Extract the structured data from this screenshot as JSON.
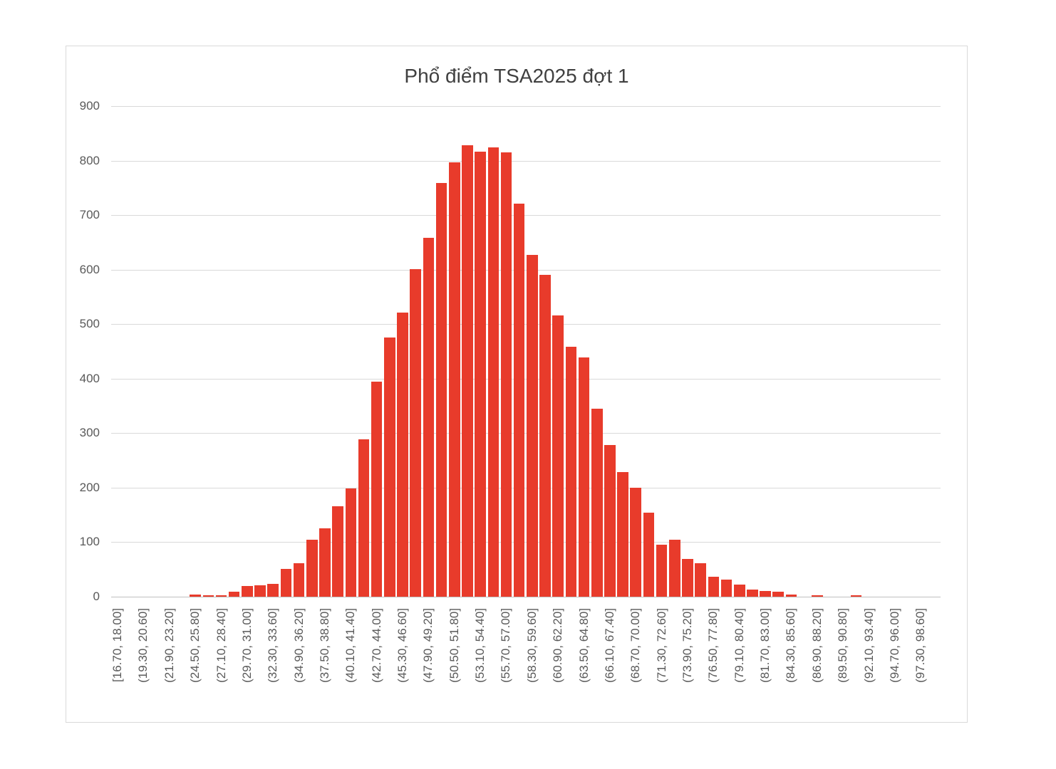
{
  "chart_data": {
    "type": "bar",
    "subtype": "histogram",
    "title": "Phổ điểm TSA2025 đợt 1",
    "xlabel": "",
    "ylabel": "",
    "ylim": [
      0,
      900
    ],
    "yticks": [
      0,
      100,
      200,
      300,
      400,
      500,
      600,
      700,
      800,
      900
    ],
    "grid": true,
    "legend": false,
    "bin_width": 1.3,
    "x_label_every": 2,
    "colors": {
      "bar": "#E83B2B",
      "gridline": "#D9D9D9",
      "axis_line": "#BFBFBF",
      "tick_label": "#595959",
      "title": "#404040",
      "background": "#FFFFFF",
      "chart_border": "#D9D9D9"
    },
    "bins": [
      {
        "label": "[16.70, 18.00]",
        "value": 0
      },
      {
        "label": null,
        "value": 0
      },
      {
        "label": "(19.30, 20.60]",
        "value": 0
      },
      {
        "label": null,
        "value": 0
      },
      {
        "label": "(21.90, 23.20]",
        "value": 0
      },
      {
        "label": null,
        "value": 0
      },
      {
        "label": "(24.50, 25.80]",
        "value": 4
      },
      {
        "label": null,
        "value": 3
      },
      {
        "label": "(27.10, 28.40]",
        "value": 3
      },
      {
        "label": null,
        "value": 9
      },
      {
        "label": "(29.70, 31.00]",
        "value": 19
      },
      {
        "label": null,
        "value": 21
      },
      {
        "label": "(32.30, 33.60]",
        "value": 23
      },
      {
        "label": null,
        "value": 51
      },
      {
        "label": "(34.90, 36.20]",
        "value": 62
      },
      {
        "label": null,
        "value": 104
      },
      {
        "label": "(37.50, 38.80]",
        "value": 125
      },
      {
        "label": null,
        "value": 166
      },
      {
        "label": "(40.10, 41.40]",
        "value": 199
      },
      {
        "label": null,
        "value": 289
      },
      {
        "label": "(42.70, 44.00]",
        "value": 394
      },
      {
        "label": null,
        "value": 476
      },
      {
        "label": "(45.30, 46.60]",
        "value": 521
      },
      {
        "label": null,
        "value": 601
      },
      {
        "label": "(47.90, 49.20]",
        "value": 658
      },
      {
        "label": null,
        "value": 759
      },
      {
        "label": "(50.50, 51.80]",
        "value": 797
      },
      {
        "label": null,
        "value": 828
      },
      {
        "label": "(53.10, 54.40]",
        "value": 816
      },
      {
        "label": null,
        "value": 824
      },
      {
        "label": "(55.70, 57.00]",
        "value": 815
      },
      {
        "label": null,
        "value": 721
      },
      {
        "label": "(58.30, 59.60]",
        "value": 627
      },
      {
        "label": null,
        "value": 590
      },
      {
        "label": "(60.90, 62.20]",
        "value": 516
      },
      {
        "label": null,
        "value": 458
      },
      {
        "label": "(63.50, 64.80]",
        "value": 439
      },
      {
        "label": null,
        "value": 345
      },
      {
        "label": "(66.10, 67.40]",
        "value": 278
      },
      {
        "label": null,
        "value": 228
      },
      {
        "label": "(68.70, 70.00]",
        "value": 200
      },
      {
        "label": null,
        "value": 154
      },
      {
        "label": "(71.30, 72.60]",
        "value": 96
      },
      {
        "label": null,
        "value": 104
      },
      {
        "label": "(73.90, 75.20]",
        "value": 69
      },
      {
        "label": null,
        "value": 62
      },
      {
        "label": "(76.50, 77.80]",
        "value": 36
      },
      {
        "label": null,
        "value": 32
      },
      {
        "label": "(79.10, 80.40]",
        "value": 22
      },
      {
        "label": null,
        "value": 13
      },
      {
        "label": "(81.70, 83.00]",
        "value": 10
      },
      {
        "label": null,
        "value": 9
      },
      {
        "label": "(84.30, 85.60]",
        "value": 4
      },
      {
        "label": null,
        "value": 0
      },
      {
        "label": "(86.90, 88.20]",
        "value": 3
      },
      {
        "label": null,
        "value": 0
      },
      {
        "label": "(89.50, 90.80]",
        "value": 0
      },
      {
        "label": null,
        "value": 2
      },
      {
        "label": "(92.10, 93.40]",
        "value": 0
      },
      {
        "label": null,
        "value": 0
      },
      {
        "label": "(94.70, 96.00]",
        "value": 0
      },
      {
        "label": null,
        "value": 0
      },
      {
        "label": "(97.30, 98.60]",
        "value": 0
      },
      {
        "label": null,
        "value": 0
      }
    ]
  }
}
